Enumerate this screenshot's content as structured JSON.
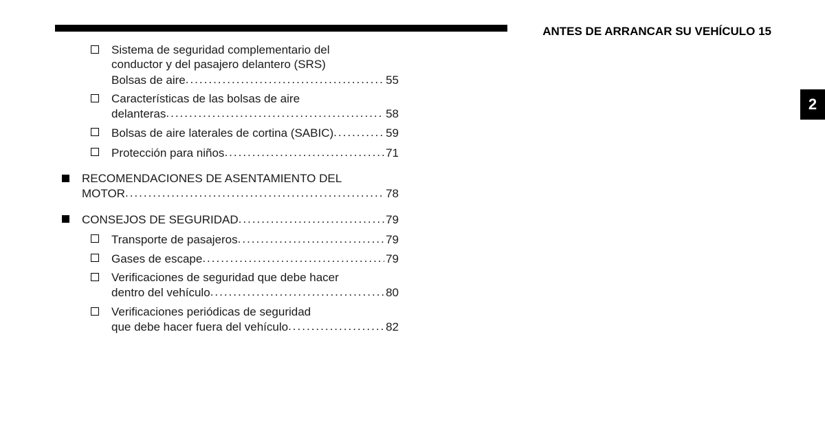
{
  "header": {
    "title": "ANTES DE ARRANCAR SU VEHÍCULO 15",
    "chapter_tab": "2"
  },
  "toc": {
    "sub_items_leading": [
      {
        "lines": [
          "Sistema de seguridad complementario del",
          "conductor y del pasajero delantero (SRS)",
          "Bolsas de aire"
        ],
        "page": "55"
      },
      {
        "lines": [
          "Características de las bolsas de aire",
          "delanteras"
        ],
        "page": "58"
      },
      {
        "lines": [
          "Bolsas de aire laterales de cortina (SABIC)"
        ],
        "page": "59"
      },
      {
        "lines": [
          "Protección para niños"
        ],
        "page": "71"
      }
    ],
    "main_items": [
      {
        "lines": [
          "RECOMENDACIONES DE ASENTAMIENTO DEL",
          "MOTOR"
        ],
        "page": "78",
        "subs": []
      },
      {
        "lines": [
          "CONSEJOS DE SEGURIDAD"
        ],
        "page": "79",
        "subs": [
          {
            "lines": [
              "Transporte de pasajeros"
            ],
            "page": "79"
          },
          {
            "lines": [
              "Gases de escape"
            ],
            "page": "79"
          },
          {
            "lines": [
              "Verificaciones de seguridad que debe hacer",
              "dentro del vehículo"
            ],
            "page": "80"
          },
          {
            "lines": [
              "Verificaciones periódicas de seguridad",
              "que debe hacer fuera del vehículo"
            ],
            "page": "82"
          }
        ]
      }
    ]
  },
  "colors": {
    "text": "#1a1a1a",
    "black": "#000000",
    "background": "#ffffff"
  }
}
